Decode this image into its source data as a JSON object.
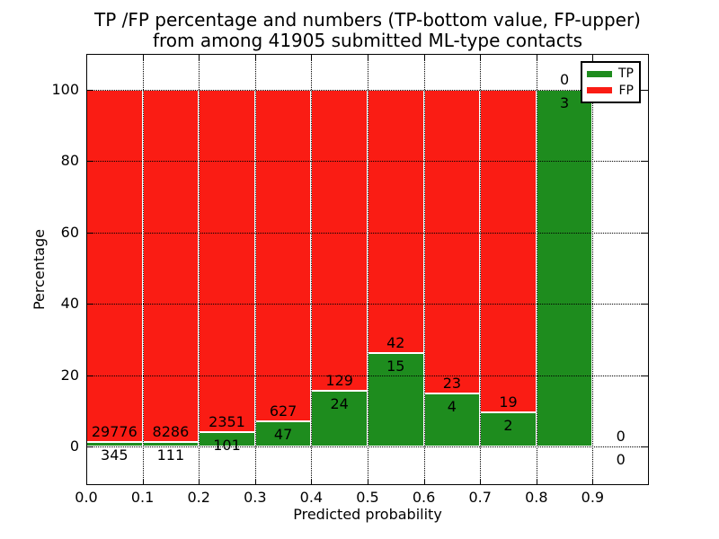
{
  "header": {
    "title_line1": "TP /FP percentage and numbers (TP-bottom value, FP-upper)",
    "title_line2": "from among 41905 submitted ML-type contacts"
  },
  "colors": {
    "tp": "#1e8c1e",
    "fp": "#fa1c14",
    "bar_edge": "#ffffff",
    "grid": "#000000",
    "text": "#000000",
    "background": "#ffffff"
  },
  "chart_data": {
    "type": "bar",
    "stacked": true,
    "title": "TP /FP percentage and numbers (TP-bottom value, FP-upper) from among 41905 submitted ML-type contacts",
    "total_contacts": 41905,
    "xlabel": "Predicted probability",
    "ylabel": "Percentage",
    "xlim": [
      0.0,
      1.0
    ],
    "ylim": [
      -11,
      110
    ],
    "x_ticks": [
      {
        "value": 0.0,
        "label": "0.0"
      },
      {
        "value": 0.1,
        "label": "0.1"
      },
      {
        "value": 0.2,
        "label": "0.2"
      },
      {
        "value": 0.3,
        "label": "0.3"
      },
      {
        "value": 0.4,
        "label": "0.4"
      },
      {
        "value": 0.5,
        "label": "0.5"
      },
      {
        "value": 0.6,
        "label": "0.6"
      },
      {
        "value": 0.7,
        "label": "0.7"
      },
      {
        "value": 0.8,
        "label": "0.8"
      },
      {
        "value": 0.9,
        "label": "0.9"
      }
    ],
    "y_ticks": [
      {
        "value": 0,
        "label": "0"
      },
      {
        "value": 20,
        "label": "20"
      },
      {
        "value": 40,
        "label": "40"
      },
      {
        "value": 60,
        "label": "60"
      },
      {
        "value": 80,
        "label": "80"
      },
      {
        "value": 100,
        "label": "100"
      }
    ],
    "grid": {
      "visible": true,
      "style": "dotted"
    },
    "legend": {
      "position": "upper-right",
      "entries": [
        {
          "label": "TP",
          "color": "#1e8c1e"
        },
        {
          "label": "FP",
          "color": "#fa1c14"
        }
      ]
    },
    "series": [
      {
        "name": "TP",
        "counts": [
          345,
          111,
          101,
          47,
          24,
          15,
          4,
          2,
          3,
          0
        ]
      },
      {
        "name": "FP",
        "counts": [
          29776,
          8286,
          2351,
          627,
          129,
          42,
          23,
          19,
          0,
          0
        ]
      }
    ],
    "bins": [
      {
        "x0": 0.0,
        "x1": 0.1,
        "tp": 345,
        "fp": 29776,
        "tp_pct": 1.15,
        "fp_pct": 98.85
      },
      {
        "x0": 0.1,
        "x1": 0.2,
        "tp": 111,
        "fp": 8286,
        "tp_pct": 1.32,
        "fp_pct": 98.68
      },
      {
        "x0": 0.2,
        "x1": 0.3,
        "tp": 101,
        "fp": 2351,
        "tp_pct": 4.12,
        "fp_pct": 95.88
      },
      {
        "x0": 0.3,
        "x1": 0.4,
        "tp": 47,
        "fp": 627,
        "tp_pct": 6.97,
        "fp_pct": 93.03
      },
      {
        "x0": 0.4,
        "x1": 0.5,
        "tp": 24,
        "fp": 129,
        "tp_pct": 15.69,
        "fp_pct": 84.31
      },
      {
        "x0": 0.5,
        "x1": 0.6,
        "tp": 15,
        "fp": 42,
        "tp_pct": 26.32,
        "fp_pct": 73.68
      },
      {
        "x0": 0.6,
        "x1": 0.7,
        "tp": 4,
        "fp": 23,
        "tp_pct": 14.81,
        "fp_pct": 85.19
      },
      {
        "x0": 0.7,
        "x1": 0.8,
        "tp": 2,
        "fp": 19,
        "tp_pct": 9.52,
        "fp_pct": 90.48
      },
      {
        "x0": 0.8,
        "x1": 0.9,
        "tp": 3,
        "fp": 0,
        "tp_pct": 100.0,
        "fp_pct": 0.0
      },
      {
        "x0": 0.9,
        "x1": 1.0,
        "tp": 0,
        "fp": 0,
        "tp_pct": null,
        "fp_pct": null
      }
    ]
  }
}
